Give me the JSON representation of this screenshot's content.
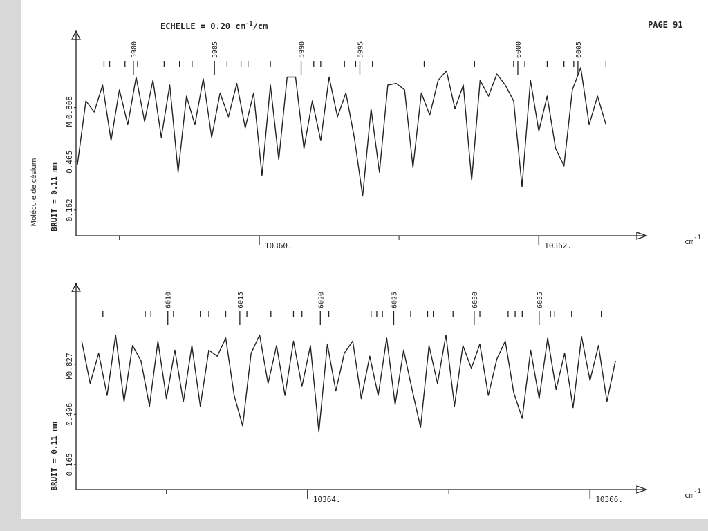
{
  "header": {
    "scale": {
      "prefix": "ECHELLE = 0.20 cm",
      "sup": "-1",
      "suffix": "/cm"
    },
    "page": "PAGE 91"
  },
  "chart_data": [
    {
      "type": "line",
      "molecule_label": "Molécule de césium",
      "noise_label": "BRUIT = 0.11 mm",
      "marker_label": "M",
      "x_unit": {
        "base": "cm",
        "sup": "-1"
      },
      "xlim": [
        10358.69,
        10362.77
      ],
      "ylim": [
        0,
        1.29
      ],
      "xticks": [
        {
          "value": 10360,
          "label": "10360."
        },
        {
          "value": 10362,
          "label": "10362."
        }
      ],
      "xminorticks": [
        10359,
        10361
      ],
      "yticks": [
        {
          "value": 0.162,
          "label": "0.162"
        },
        {
          "value": 0.465,
          "label": "0.465"
        },
        {
          "value": 0.808,
          "label": "0.808"
        }
      ],
      "color": "#222222",
      "x": [
        10358.7,
        10358.76,
        10358.82,
        10358.88,
        10358.94,
        10359.0,
        10359.06,
        10359.12,
        10359.18,
        10359.24,
        10359.3,
        10359.36,
        10359.42,
        10359.48,
        10359.54,
        10359.6,
        10359.66,
        10359.72,
        10359.78,
        10359.84,
        10359.9,
        10359.96,
        10360.02,
        10360.08,
        10360.14,
        10360.2,
        10360.26,
        10360.32,
        10360.38,
        10360.44,
        10360.5,
        10360.56,
        10360.62,
        10360.68,
        10360.74,
        10360.8,
        10360.86,
        10360.92,
        10360.98,
        10361.04,
        10361.1,
        10361.16,
        10361.22,
        10361.28,
        10361.34,
        10361.4,
        10361.46,
        10361.52,
        10361.58,
        10361.64,
        10361.7,
        10361.76,
        10361.82,
        10361.88,
        10361.94,
        10362.0,
        10362.06,
        10362.12,
        10362.18,
        10362.24,
        10362.3,
        10362.36,
        10362.42,
        10362.48
      ],
      "values": [
        0.45,
        0.85,
        0.78,
        0.95,
        0.6,
        0.92,
        0.7,
        1.0,
        0.72,
        0.98,
        0.62,
        0.95,
        0.4,
        0.88,
        0.7,
        0.99,
        0.62,
        0.9,
        0.75,
        0.96,
        0.68,
        0.9,
        0.38,
        0.95,
        0.48,
        1.0,
        1.0,
        0.55,
        0.85,
        0.6,
        1.0,
        0.75,
        0.9,
        0.62,
        0.25,
        0.8,
        0.4,
        0.95,
        0.96,
        0.92,
        0.43,
        0.9,
        0.76,
        0.98,
        1.04,
        0.8,
        0.95,
        0.35,
        0.98,
        0.88,
        1.02,
        0.95,
        0.85,
        0.31,
        0.98,
        0.66,
        0.88,
        0.55,
        0.44,
        0.92,
        1.06,
        0.7,
        0.88,
        0.7
      ],
      "line_markers": [
        {
          "x": 10359.1,
          "label": "5980"
        },
        {
          "x": 10359.68,
          "label": "5985"
        },
        {
          "x": 10360.3,
          "label": "5990"
        },
        {
          "x": 10360.72,
          "label": "5995"
        },
        {
          "x": 10361.85,
          "label": "6000"
        },
        {
          "x": 10362.28,
          "label": "6005"
        }
      ],
      "minor_markers": [
        10358.89,
        10358.93,
        10359.04,
        10359.13,
        10359.32,
        10359.43,
        10359.52,
        10359.77,
        10359.87,
        10359.92,
        10360.08,
        10360.39,
        10360.44,
        10360.61,
        10360.69,
        10360.81,
        10361.18,
        10361.54,
        10361.82,
        10361.9,
        10362.06,
        10362.18,
        10362.25,
        10362.48
      ]
    },
    {
      "type": "line",
      "noise_label": "BRUIT = 0.11 mm",
      "marker_label": "M",
      "x_unit": {
        "base": "cm",
        "sup": "-1"
      },
      "xlim": [
        10362.36,
        10366.4
      ],
      "ylim": [
        0,
        1.36
      ],
      "xticks": [
        {
          "value": 10364,
          "label": "10364."
        },
        {
          "value": 10366,
          "label": "10366."
        }
      ],
      "xminorticks": [
        10363,
        10365
      ],
      "yticks": [
        {
          "value": 0.165,
          "label": "0.165"
        },
        {
          "value": 0.496,
          "label": "0.496"
        },
        {
          "value": 0.827,
          "label": "0.827"
        }
      ],
      "color": "#222222",
      "x": [
        10362.4,
        10362.46,
        10362.52,
        10362.58,
        10362.64,
        10362.7,
        10362.76,
        10362.82,
        10362.88,
        10362.94,
        10363.0,
        10363.06,
        10363.12,
        10363.18,
        10363.24,
        10363.3,
        10363.36,
        10363.42,
        10363.48,
        10363.54,
        10363.6,
        10363.66,
        10363.72,
        10363.78,
        10363.84,
        10363.9,
        10363.96,
        10364.02,
        10364.08,
        10364.14,
        10364.2,
        10364.26,
        10364.32,
        10364.38,
        10364.44,
        10364.5,
        10364.56,
        10364.62,
        10364.68,
        10364.74,
        10364.8,
        10364.86,
        10364.92,
        10364.98,
        10365.04,
        10365.1,
        10365.16,
        10365.22,
        10365.28,
        10365.34,
        10365.4,
        10365.46,
        10365.52,
        10365.58,
        10365.64,
        10365.7,
        10365.76,
        10365.82,
        10365.88,
        10365.94,
        10366.0,
        10366.06,
        10366.12,
        10366.18
      ],
      "values": [
        0.98,
        0.7,
        0.9,
        0.62,
        1.02,
        0.58,
        0.95,
        0.85,
        0.55,
        0.98,
        0.6,
        0.92,
        0.58,
        0.95,
        0.55,
        0.92,
        0.88,
        1.0,
        0.62,
        0.42,
        0.9,
        1.02,
        0.7,
        0.95,
        0.62,
        0.98,
        0.68,
        0.95,
        0.38,
        0.96,
        0.65,
        0.9,
        0.98,
        0.6,
        0.88,
        0.62,
        1.0,
        0.56,
        0.92,
        0.66,
        0.41,
        0.95,
        0.7,
        1.02,
        0.55,
        0.95,
        0.8,
        0.96,
        0.62,
        0.86,
        0.98,
        0.64,
        0.47,
        0.92,
        0.6,
        1.0,
        0.66,
        0.9,
        0.54,
        1.01,
        0.72,
        0.95,
        0.58,
        0.85
      ],
      "line_markers": [
        {
          "x": 10363.01,
          "label": "6010"
        },
        {
          "x": 10363.52,
          "label": "6015"
        },
        {
          "x": 10364.09,
          "label": "6020"
        },
        {
          "x": 10364.61,
          "label": "6025"
        },
        {
          "x": 10365.18,
          "label": "6030"
        },
        {
          "x": 10365.64,
          "label": "6035"
        }
      ],
      "minor_markers": [
        10362.55,
        10362.85,
        10362.89,
        10363.05,
        10363.24,
        10363.3,
        10363.42,
        10363.57,
        10363.74,
        10363.9,
        10363.96,
        10364.15,
        10364.45,
        10364.49,
        10364.53,
        10364.73,
        10364.85,
        10364.89,
        10365.03,
        10365.22,
        10365.42,
        10365.47,
        10365.52,
        10365.72,
        10365.75,
        10365.87,
        10366.08
      ]
    }
  ]
}
